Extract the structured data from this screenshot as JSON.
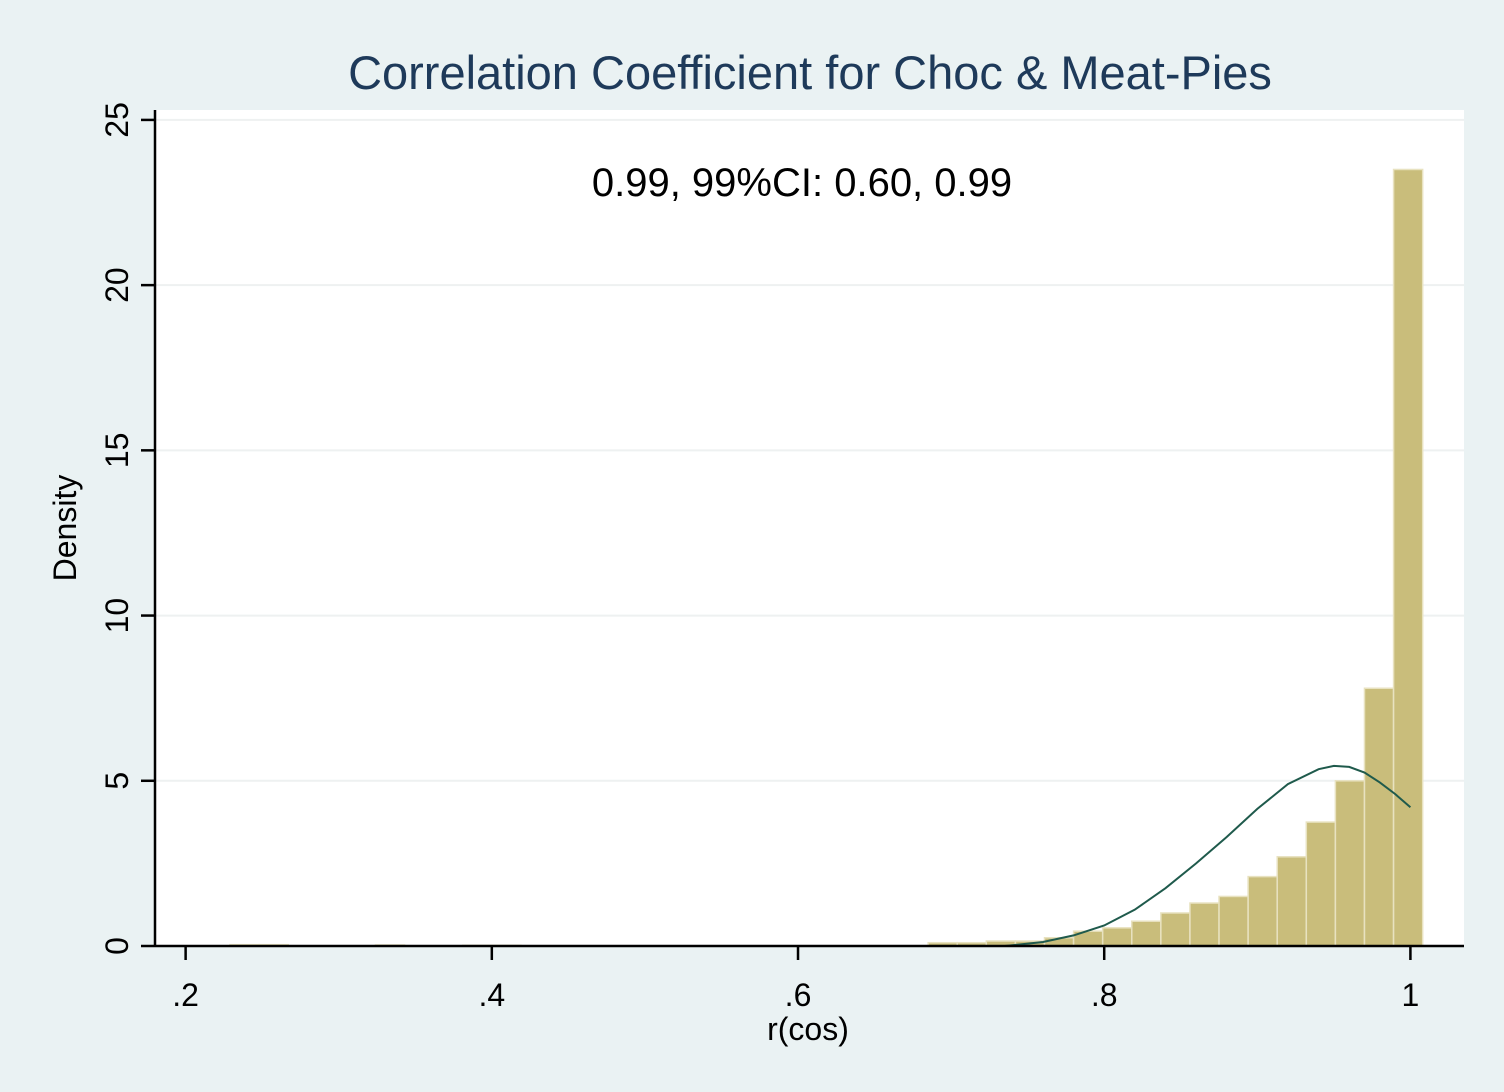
{
  "chart_data": {
    "type": "bar",
    "subtype": "histogram_with_kernel_density",
    "title": "Correlation Coefficient for Choc & Meat-Pies",
    "annotation": "0.99, 99%CI: 0.60, 0.99",
    "xlabel": "r(cos)",
    "ylabel": "Density",
    "xlim": [
      0.18,
      1.035
    ],
    "ylim": [
      0,
      25.3
    ],
    "xticks": [
      0.2,
      0.4,
      0.6,
      0.8,
      1.0
    ],
    "xtick_labels": [
      ".2",
      ".4",
      ".6",
      ".8",
      "1"
    ],
    "yticks": [
      0,
      5,
      10,
      15,
      20,
      25
    ],
    "ytick_labels": [
      "0",
      "5",
      "10",
      "15",
      "20",
      "25"
    ],
    "grid": "horizontal",
    "bar_color": "#c9bd7b",
    "line_color": "#1f5a4c",
    "plot_background": "#ffffff",
    "page_background": "#eaf2f3",
    "bin_width": 0.019,
    "bins": [
      {
        "x0": 0.229,
        "y": 0.04
      },
      {
        "x0": 0.248,
        "y": 0.04
      },
      {
        "x0": 0.324,
        "y": 0.03
      },
      {
        "x0": 0.381,
        "y": 0.02
      },
      {
        "x0": 0.4,
        "y": 0.02
      },
      {
        "x0": 0.685,
        "y": 0.1
      },
      {
        "x0": 0.704,
        "y": 0.1
      },
      {
        "x0": 0.723,
        "y": 0.15
      },
      {
        "x0": 0.742,
        "y": 0.15
      },
      {
        "x0": 0.761,
        "y": 0.25
      },
      {
        "x0": 0.78,
        "y": 0.45
      },
      {
        "x0": 0.799,
        "y": 0.55
      },
      {
        "x0": 0.818,
        "y": 0.75
      },
      {
        "x0": 0.837,
        "y": 1.0
      },
      {
        "x0": 0.856,
        "y": 1.3
      },
      {
        "x0": 0.875,
        "y": 1.5
      },
      {
        "x0": 0.894,
        "y": 2.1
      },
      {
        "x0": 0.913,
        "y": 2.7
      },
      {
        "x0": 0.932,
        "y": 3.75
      },
      {
        "x0": 0.951,
        "y": 5.0
      },
      {
        "x0": 0.97,
        "y": 7.8
      },
      {
        "x0": 0.989,
        "y": 23.5
      }
    ],
    "density_curve": {
      "x": [
        0.735,
        0.76,
        0.78,
        0.8,
        0.82,
        0.84,
        0.86,
        0.88,
        0.9,
        0.92,
        0.94,
        0.95,
        0.96,
        0.97,
        0.98,
        0.99,
        1.0
      ],
      "y": [
        0.0,
        0.12,
        0.32,
        0.62,
        1.1,
        1.75,
        2.5,
        3.3,
        4.15,
        4.9,
        5.35,
        5.45,
        5.42,
        5.25,
        4.95,
        4.6,
        4.2
      ]
    }
  }
}
